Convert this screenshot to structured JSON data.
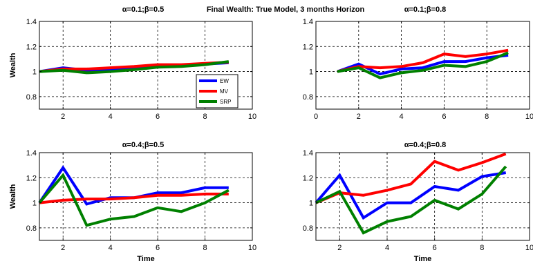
{
  "suptitle": "Final Wealth: True Model, 3 months Horizon",
  "colors": {
    "EW": "#0000ff",
    "MV": "#ff0000",
    "SRP": "#008000"
  },
  "legend": [
    "EW",
    "MV",
    "SRP"
  ],
  "chart_data": [
    {
      "type": "line",
      "title": "α=0.1;β=0.5",
      "xlabel": "",
      "ylabel": "Wealth",
      "xlim": [
        1,
        10
      ],
      "ylim": [
        0.7,
        1.4
      ],
      "xticks": [
        2,
        4,
        6,
        8,
        10
      ],
      "yticks": [
        0.8,
        1,
        1.2,
        1.4
      ],
      "ytick_labels": [
        "0.8",
        "1",
        "1.2",
        "1.4"
      ],
      "grid": true,
      "legend_position": "bottom-right",
      "x": [
        1,
        2,
        3,
        4,
        5,
        6,
        7,
        8,
        9
      ],
      "series": [
        {
          "name": "EW",
          "values": [
            1.0,
            1.03,
            1.01,
            1.02,
            1.03,
            1.05,
            1.05,
            1.06,
            1.07
          ]
        },
        {
          "name": "MV",
          "values": [
            1.0,
            1.02,
            1.02,
            1.03,
            1.04,
            1.055,
            1.055,
            1.065,
            1.075
          ]
        },
        {
          "name": "SRP",
          "values": [
            1.0,
            1.01,
            0.99,
            1.0,
            1.015,
            1.035,
            1.04,
            1.055,
            1.08
          ]
        }
      ]
    },
    {
      "type": "line",
      "title": "α=0.1;β=0.8",
      "xlabel": "",
      "ylabel": "",
      "xlim": [
        0,
        10
      ],
      "ylim": [
        0.7,
        1.4
      ],
      "xticks": [
        0,
        2,
        4,
        6,
        8,
        10
      ],
      "yticks": [
        0.8,
        1,
        1.2,
        1.4
      ],
      "ytick_labels": [
        "0.8",
        "1",
        "1.2",
        "1.4"
      ],
      "grid": true,
      "x": [
        1,
        2,
        3,
        4,
        5,
        6,
        7,
        8,
        9
      ],
      "series": [
        {
          "name": "EW",
          "values": [
            1.0,
            1.06,
            0.98,
            1.02,
            1.03,
            1.08,
            1.08,
            1.11,
            1.13
          ]
        },
        {
          "name": "MV",
          "values": [
            1.0,
            1.04,
            1.03,
            1.04,
            1.07,
            1.14,
            1.12,
            1.14,
            1.17
          ]
        },
        {
          "name": "SRP",
          "values": [
            1.0,
            1.03,
            0.95,
            0.99,
            1.01,
            1.05,
            1.04,
            1.08,
            1.15
          ]
        }
      ]
    },
    {
      "type": "line",
      "title": "α=0.4;β=0.5",
      "xlabel": "Time",
      "ylabel": "Wealth",
      "xlim": [
        1,
        10
      ],
      "ylim": [
        0.7,
        1.4
      ],
      "xticks": [
        2,
        4,
        6,
        8,
        10
      ],
      "yticks": [
        0.8,
        1,
        1.2,
        1.4
      ],
      "ytick_labels": [
        "0.8",
        "1",
        "1.2",
        "1.4"
      ],
      "grid": true,
      "x": [
        1,
        2,
        3,
        4,
        5,
        6,
        7,
        8,
        9
      ],
      "series": [
        {
          "name": "EW",
          "values": [
            1.0,
            1.28,
            0.99,
            1.04,
            1.04,
            1.08,
            1.08,
            1.12,
            1.12
          ]
        },
        {
          "name": "MV",
          "values": [
            1.0,
            1.02,
            1.03,
            1.03,
            1.04,
            1.06,
            1.06,
            1.07,
            1.07
          ]
        },
        {
          "name": "SRP",
          "values": [
            1.0,
            1.22,
            0.82,
            0.87,
            0.89,
            0.96,
            0.93,
            1.0,
            1.1
          ]
        }
      ]
    },
    {
      "type": "line",
      "title": "α=0.4;β=0.8",
      "xlabel": "Time",
      "ylabel": "",
      "xlim": [
        1,
        10
      ],
      "ylim": [
        0.7,
        1.4
      ],
      "xticks": [
        2,
        4,
        6,
        8,
        10
      ],
      "yticks": [
        0.8,
        1,
        1.2,
        1.4
      ],
      "ytick_labels": [
        "0.8",
        "1",
        "1.2",
        "1.4"
      ],
      "grid": true,
      "x": [
        1,
        2,
        3,
        4,
        5,
        6,
        7,
        8,
        9
      ],
      "series": [
        {
          "name": "EW",
          "values": [
            1.0,
            1.22,
            0.88,
            1.0,
            1.0,
            1.13,
            1.1,
            1.21,
            1.24
          ]
        },
        {
          "name": "MV",
          "values": [
            1.0,
            1.08,
            1.06,
            1.1,
            1.15,
            1.33,
            1.26,
            1.32,
            1.39
          ]
        },
        {
          "name": "SRP",
          "values": [
            1.0,
            1.09,
            0.76,
            0.85,
            0.89,
            1.02,
            0.95,
            1.07,
            1.29
          ]
        }
      ]
    }
  ]
}
